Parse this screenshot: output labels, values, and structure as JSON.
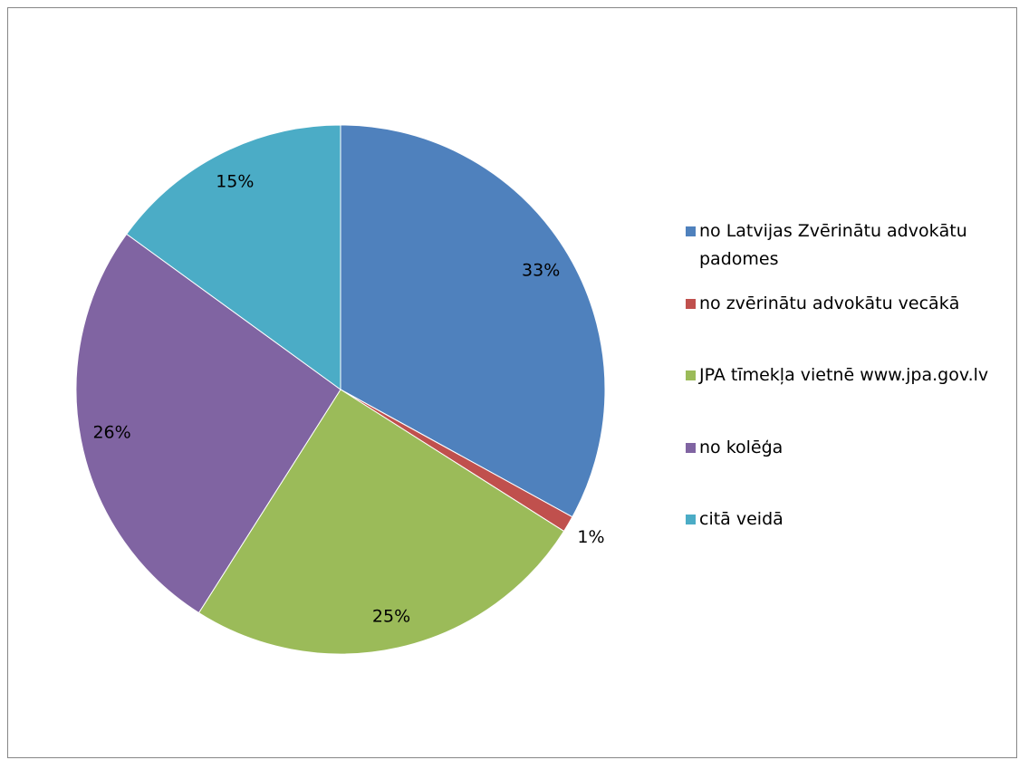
{
  "chart_data": {
    "type": "pie",
    "categories": [
      "no Latvijas Zvērinātu advokātu padomes",
      "no zvērinātu advokātu vecākā",
      "JPA tīmekļa vietnē www.jpa.gov.lv",
      "no kolēģa",
      "citā veidā"
    ],
    "values": [
      33,
      1,
      25,
      26,
      15
    ],
    "value_labels": [
      "33%",
      "1%",
      "25%",
      "26%",
      "15%"
    ],
    "colors": [
      "#4f81bd",
      "#c0504d",
      "#9bbb59",
      "#8064a2",
      "#4bacc6"
    ],
    "legend": "right"
  }
}
